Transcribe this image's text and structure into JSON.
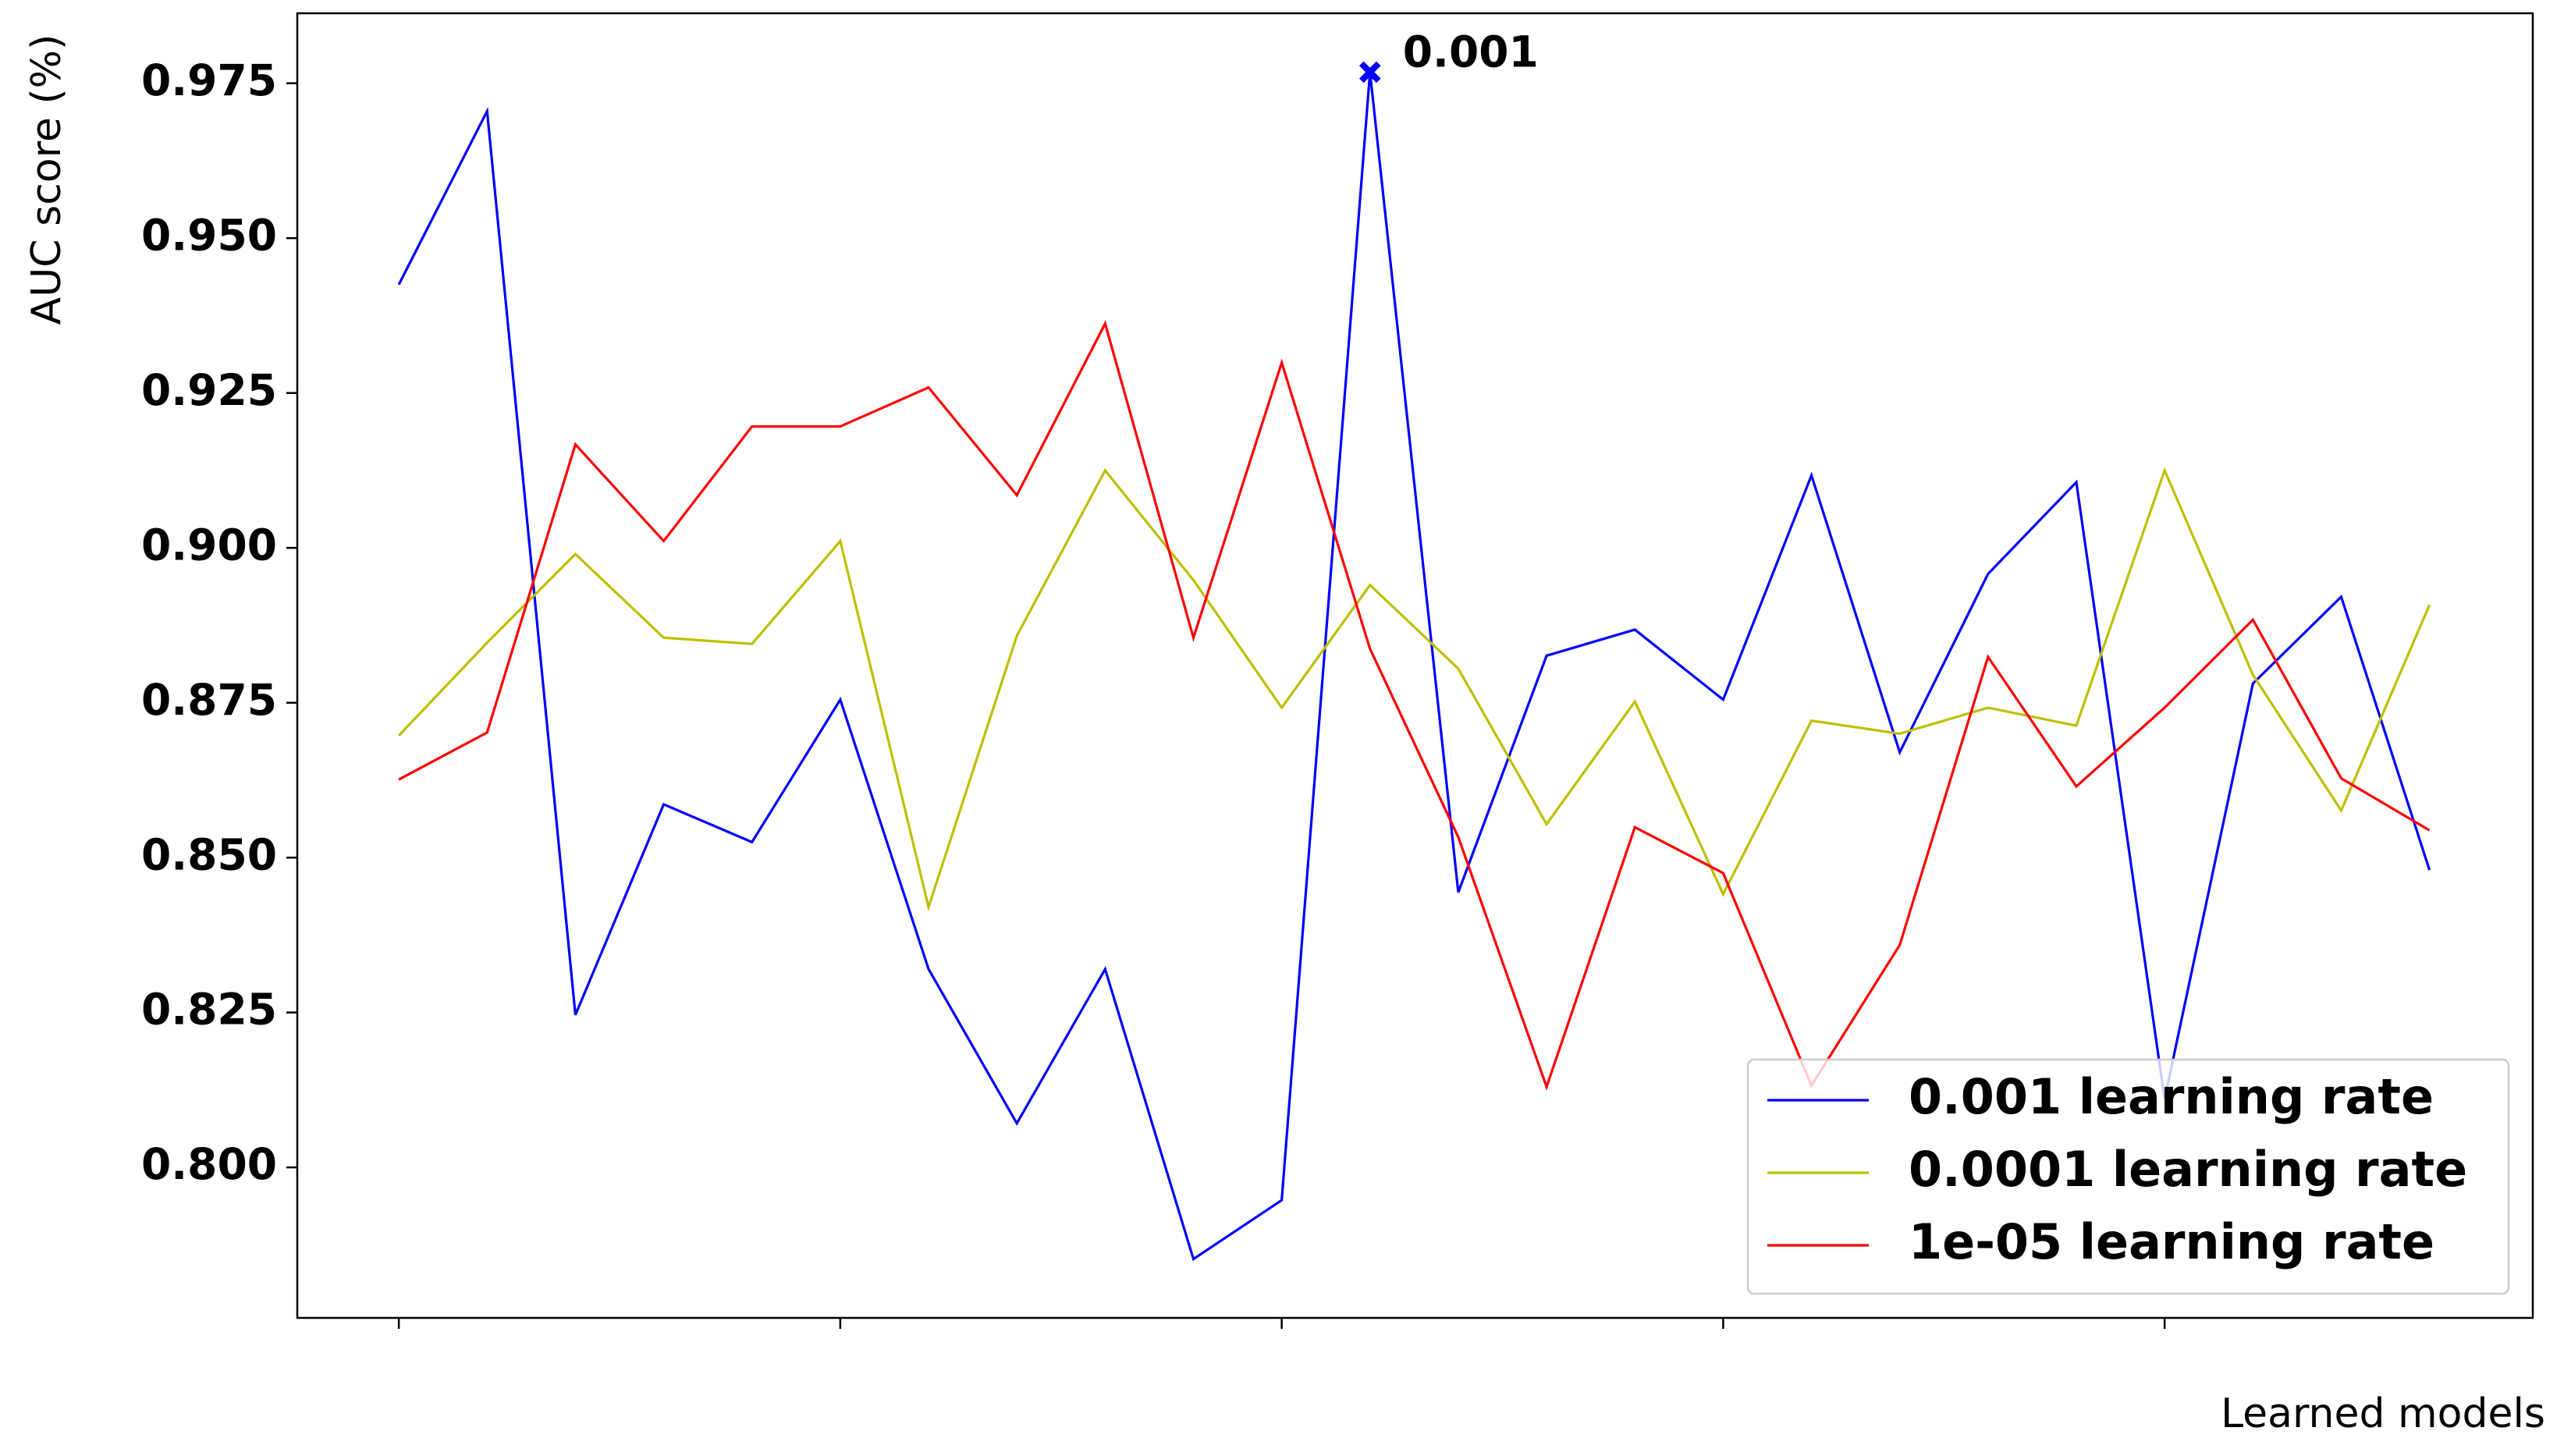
{
  "chart_data": {
    "type": "line",
    "y_label": "AUC score (%)",
    "x_label": "Learned models",
    "annotation": "0.001",
    "x": [
      0,
      1,
      2,
      3,
      4,
      5,
      6,
      7,
      8,
      9,
      10,
      11,
      12,
      13,
      14,
      15,
      16,
      17,
      18,
      19,
      20,
      21,
      22,
      23
    ],
    "xlim": [
      -1.15,
      24.17
    ],
    "xticks": [
      0,
      5,
      10,
      15,
      20
    ],
    "ylim": [
      0.7757,
      0.9863
    ],
    "yticks": [
      {
        "value": 0.8,
        "label": "0.800"
      },
      0.825,
      {
        "value": 0.85,
        "label": "0.850"
      },
      0.875,
      {
        "value": 0.9,
        "label": "0.900"
      },
      0.925,
      {
        "value": 0.95,
        "label": "0.950"
      },
      0.975
    ],
    "legend": "lower right",
    "series": [
      {
        "name": "0.001 learning rate",
        "color": "#0000ff",
        "values": [
          0.9425,
          0.9705,
          0.8246,
          0.8586,
          0.8525,
          0.8755,
          0.832,
          0.8071,
          0.832,
          0.7852,
          0.7947,
          0.9768,
          0.8444,
          0.8826,
          0.8868,
          0.8755,
          0.9117,
          0.867,
          0.8958,
          0.9106,
          0.811,
          0.8781,
          0.8921,
          0.848
        ]
      },
      {
        "name": "0.0001 learning rate",
        "color": "#bfbf00",
        "values": [
          0.8697,
          0.8847,
          0.899,
          0.8855,
          0.8845,
          0.9011,
          0.842,
          0.8858,
          0.9125,
          0.8948,
          0.8742,
          0.894,
          0.8805,
          0.8554,
          0.8752,
          0.8441,
          0.8721,
          0.87,
          0.8742,
          0.8713,
          0.9125,
          0.8795,
          0.8576,
          0.8908
        ]
      },
      {
        "name": "1e-05 learning rate",
        "color": "#ff0000",
        "values": [
          0.8626,
          0.8702,
          0.9167,
          0.9011,
          0.9196,
          0.9196,
          0.9259,
          0.9085,
          0.9362,
          0.8855,
          0.9299,
          0.8837,
          0.8533,
          0.813,
          0.8549,
          0.8475,
          0.8132,
          0.8359,
          0.8824,
          0.8615,
          0.8742,
          0.8884,
          0.8628,
          0.8544
        ]
      }
    ]
  }
}
